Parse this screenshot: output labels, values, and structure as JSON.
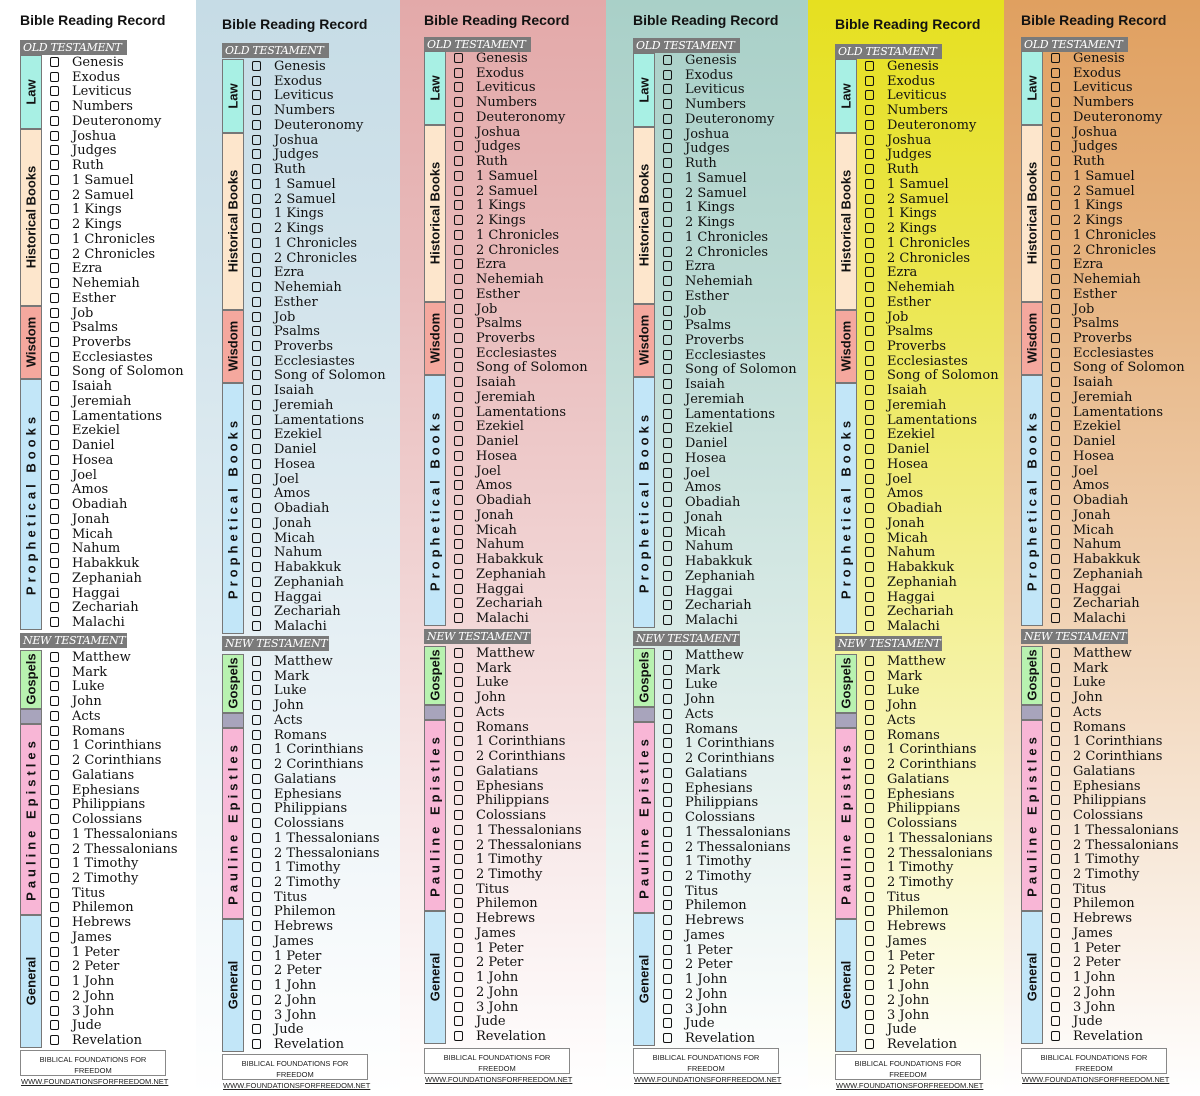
{
  "title": "Bible Reading Record",
  "old_testament_label": "OLD TESTAMENT",
  "new_testament_label": "NEW TESTAMENT",
  "footer": {
    "line1": "BIBLICAL FOUNDATIONS FOR FREEDOM",
    "line2": "WWW.FOUNDATIONSFORFREEDOM.NET"
  },
  "old_testament_sections": [
    {
      "label": "Law",
      "color": "#a8f0e4",
      "books": [
        "Genesis",
        "Exodus",
        "Leviticus",
        "Numbers",
        "Deuteronomy"
      ]
    },
    {
      "label": "Historical Books",
      "color": "#fde6cc",
      "books": [
        "Joshua",
        "Judges",
        "Ruth",
        "1 Samuel",
        "2 Samuel",
        "1 Kings",
        "2 Kings",
        "1 Chronicles",
        "2 Chronicles",
        "Ezra",
        "Nehemiah",
        "Esther"
      ]
    },
    {
      "label": "Wisdom",
      "color": "#f5a89e",
      "books": [
        "Job",
        "Psalms",
        "Proverbs",
        "Ecclesiastes",
        "Song of Solomon"
      ]
    },
    {
      "label": "Prophetical Books",
      "color": "#c2e6f8",
      "books": [
        "Isaiah",
        "Jeremiah",
        "Lamentations",
        "Ezekiel",
        "Daniel",
        "Hosea",
        "Joel",
        "Amos",
        "Obadiah",
        "Jonah",
        "Micah",
        "Nahum",
        "Habakkuk",
        "Zephaniah",
        "Haggai",
        "Zechariah",
        "Malachi"
      ]
    }
  ],
  "new_testament_sections": [
    {
      "label": "Gospels",
      "color": "#b8f2b0",
      "books": [
        "Matthew",
        "Mark",
        "Luke",
        "John"
      ]
    },
    {
      "label": "",
      "color": "#a8a4bc",
      "books": [
        "Acts"
      ]
    },
    {
      "label": "Pauline Epistles",
      "color": "#f8b6d6",
      "books": [
        "Romans",
        "1 Corinthians",
        "2 Corinthians",
        "Galatians",
        "Ephesians",
        "Philippians",
        "Colossians",
        "1 Thessalonians",
        "2 Thessalonians",
        "1 Timothy",
        "2 Timothy",
        "Titus",
        "Philemon"
      ]
    },
    {
      "label": "General",
      "color": "#c2e6f8",
      "books": [
        "Hebrews",
        "James",
        "1 Peter",
        "2 Peter",
        "1 John",
        "2 John",
        "3 John",
        "Jude",
        "Revelation"
      ]
    }
  ],
  "bookmarks": [
    {
      "background": "#ffffff"
    },
    {
      "background": "#c6dce6"
    },
    {
      "background": "#e3a9a9"
    },
    {
      "background": "#a9d0c8"
    },
    {
      "background": "#e6e020"
    },
    {
      "background": "#e0a060"
    }
  ]
}
